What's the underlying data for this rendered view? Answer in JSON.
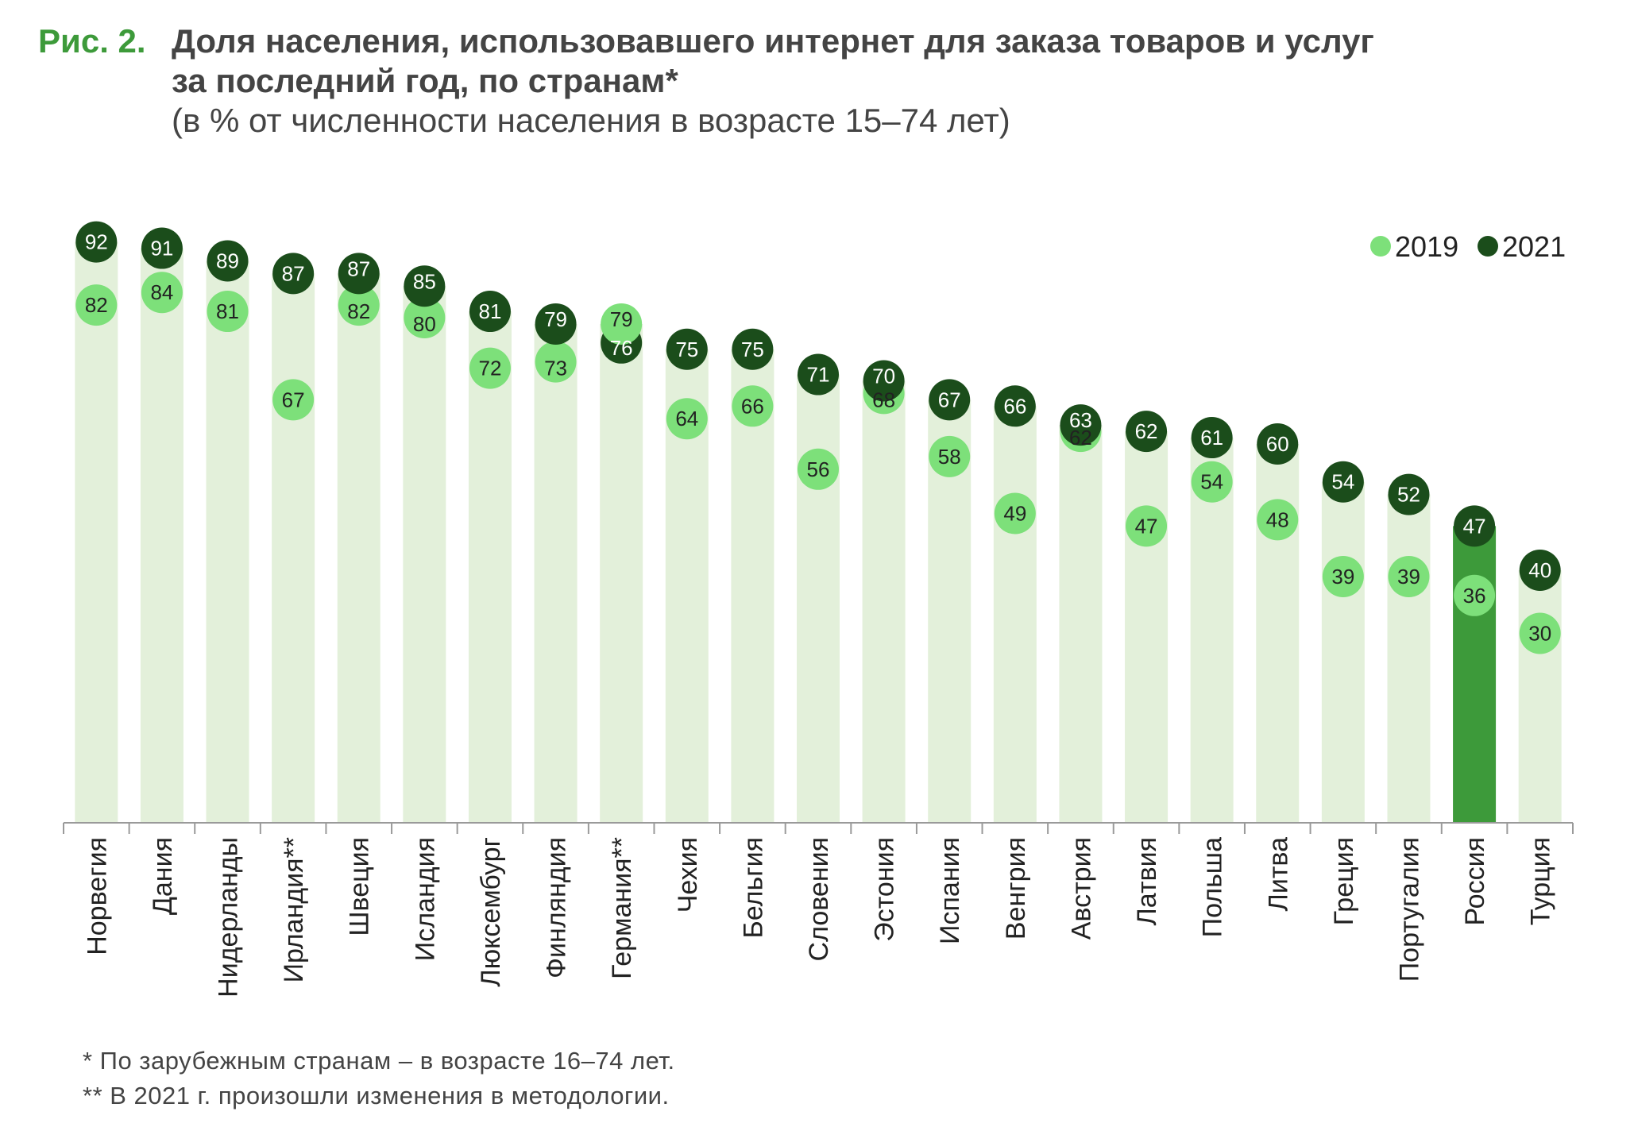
{
  "figure": {
    "label": "Рис. 2.",
    "title_line1": "Доля населения, использовавшего интернет для заказа товаров и услуг",
    "title_line2": "за последний год, по странам*",
    "subtitle": "(в % от численности населения в возрасте 15–74 лет)"
  },
  "footnotes": {
    "note1": "* По зарубежным странам – в возрасте 16–74 лет.",
    "note2": "** В 2021 г. произошли изменения в методологии."
  },
  "colors": {
    "bar": "#e3f0da",
    "bar_highlight": "#3d9a3a",
    "dot_2019": "#7de07a",
    "dot_2021": "#1b4d1b",
    "axis": "#9a9a9a",
    "text": "#333333"
  },
  "chart_data": {
    "type": "dot",
    "title": "Доля населения, использовавшего интернет для заказа товаров и услуг за последний год, по странам*",
    "ylabel": "",
    "xlabel": "",
    "ylim": [
      0,
      100
    ],
    "grid": false,
    "legend_position": "top-right",
    "highlight": "Россия",
    "categories": [
      "Норвегия",
      "Дания",
      "Нидерланды",
      "Ирландия**",
      "Швеция",
      "Исландия",
      "Люксембург",
      "Финляндия",
      "Германия**",
      "Чехия",
      "Бельгия",
      "Словения",
      "Эстония",
      "Испания",
      "Венгрия",
      "Австрия",
      "Латвия",
      "Польша",
      "Литва",
      "Греция",
      "Португалия",
      "Россия",
      "Турция"
    ],
    "series": [
      {
        "name": "2019",
        "values": [
          82,
          84,
          81,
          67,
          82,
          80,
          72,
          73,
          79,
          64,
          66,
          56,
          68,
          58,
          49,
          62,
          47,
          54,
          48,
          39,
          39,
          36,
          30
        ]
      },
      {
        "name": "2021",
        "values": [
          92,
          91,
          89,
          87,
          87,
          85,
          81,
          79,
          76,
          75,
          75,
          71,
          70,
          67,
          66,
          63,
          62,
          61,
          60,
          54,
          52,
          47,
          40
        ]
      }
    ]
  }
}
